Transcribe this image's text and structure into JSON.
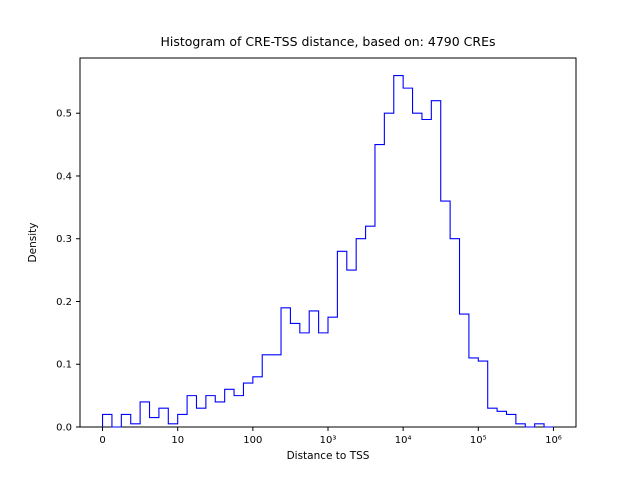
{
  "chart_data": {
    "type": "histogram-step",
    "title": "Histogram of CRE-TSS distance, based on: 4790 CREs",
    "xlabel": "Distance to TSS",
    "ylabel": "Density",
    "x_scale": "symlog (linear 0-10, then log decades up to 1e6)",
    "x_tick_values": [
      0,
      10,
      100,
      1000,
      10000,
      100000,
      1000000
    ],
    "x_tick_labels": [
      "0",
      "10",
      "100",
      "10³",
      "10⁴",
      "10⁵",
      "10⁶"
    ],
    "y_tick_values": [
      0.0,
      0.1,
      0.2,
      0.3,
      0.4,
      0.5
    ],
    "y_tick_labels": [
      "0.0",
      "0.1",
      "0.2",
      "0.3",
      "0.4",
      "0.5"
    ],
    "ylim": [
      0,
      0.588
    ],
    "line_color": "#0000ff",
    "grid": false,
    "legend": "none",
    "bins": {
      "description": "uniform bins in symlog space, 8 per decade, first decade is linear 0-10",
      "per_decade": 8,
      "count": 48,
      "start": 0,
      "end": 1000000
    },
    "heights": [
      0.02,
      0.0,
      0.02,
      0.005,
      0.04,
      0.015,
      0.03,
      0.005,
      0.02,
      0.05,
      0.03,
      0.05,
      0.04,
      0.06,
      0.05,
      0.07,
      0.08,
      0.115,
      0.115,
      0.19,
      0.165,
      0.15,
      0.185,
      0.15,
      0.175,
      0.28,
      0.25,
      0.3,
      0.32,
      0.45,
      0.5,
      0.56,
      0.54,
      0.5,
      0.49,
      0.52,
      0.36,
      0.3,
      0.18,
      0.11,
      0.105,
      0.03,
      0.025,
      0.02,
      0.005,
      0.0,
      0.005,
      0.0
    ]
  }
}
